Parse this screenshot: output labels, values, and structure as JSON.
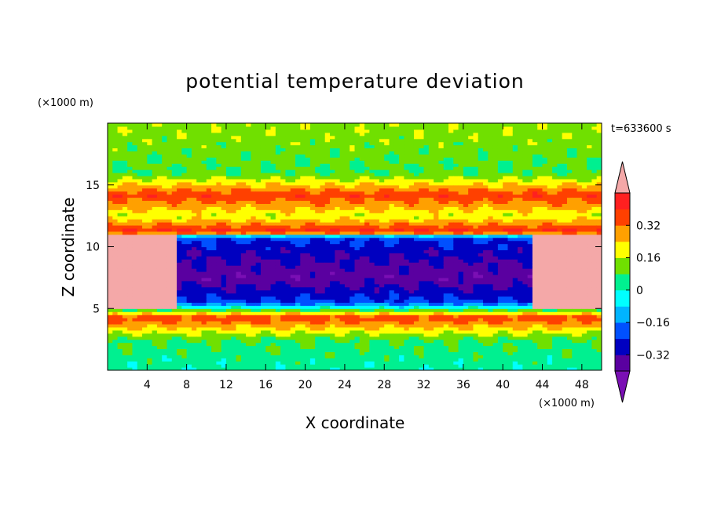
{
  "chart_data": {
    "type": "heatmap",
    "title": "potential temperature deviation",
    "xlabel": "X coordinate",
    "ylabel": "Z coordinate",
    "x_unit": "(×1000 m)",
    "y_unit": "(×1000 m)",
    "time_label": "t=633600 s",
    "xlim": [
      0,
      50
    ],
    "ylim": [
      0,
      20
    ],
    "x_ticks": [
      4,
      8,
      12,
      16,
      20,
      24,
      28,
      32,
      36,
      40,
      44,
      48
    ],
    "y_ticks": [
      5,
      10,
      15
    ],
    "colorbar": {
      "levels": [
        -0.48,
        -0.4,
        -0.32,
        -0.24,
        -0.16,
        -0.08,
        0,
        0.08,
        0.16,
        0.24,
        0.32,
        0.4
      ],
      "labels": [
        {
          "value": 0.32,
          "text": "0.32"
        },
        {
          "value": 0.16,
          "text": "0.16"
        },
        {
          "value": 0,
          "text": "0"
        },
        {
          "value": -0.16,
          "text": "−0.16"
        },
        {
          "value": -0.32,
          "text": "−0.32"
        }
      ],
      "colors": [
        "#7a0fb4",
        "#5a00a0",
        "#0000c0",
        "#0050ff",
        "#00b4ff",
        "#00ffff",
        "#00f090",
        "#70e000",
        "#ffff00",
        "#ffa000",
        "#ff4000",
        "#ff2020",
        "#f4a8a8"
      ]
    },
    "field_profile_by_z": [
      {
        "z": 0.5,
        "value": -0.05
      },
      {
        "z": 2.5,
        "value": 0.0
      },
      {
        "z": 4.3,
        "value": 0.3
      },
      {
        "z": 5.5,
        "value": -0.3
      },
      {
        "z": 7.5,
        "value": -0.45
      },
      {
        "z": 9.5,
        "value": -0.38
      },
      {
        "z": 10.8,
        "value": -0.3
      },
      {
        "z": 11.2,
        "value": 0.35
      },
      {
        "z": 12.5,
        "value": 0.1
      },
      {
        "z": 14.2,
        "value": 0.3
      },
      {
        "z": 16.0,
        "value": 0.0
      },
      {
        "z": 19.0,
        "value": 0.05
      }
    ]
  }
}
